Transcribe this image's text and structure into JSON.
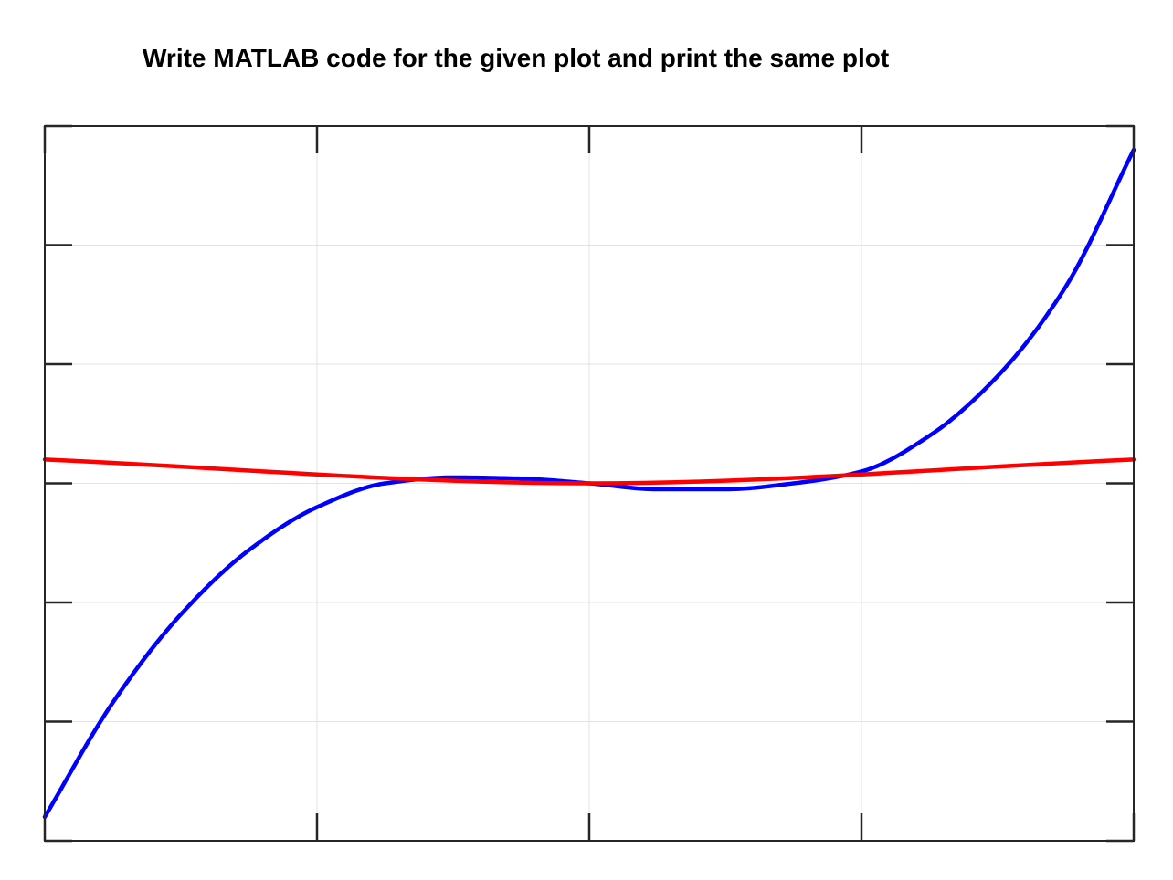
{
  "prompt": {
    "text": "Write MATLAB code for the given plot and print the same plot"
  },
  "chart_data": {
    "type": "line",
    "title": "",
    "xlabel": "",
    "ylabel": "",
    "xlim": [
      -2,
      2
    ],
    "ylim": [
      -3,
      3
    ],
    "xticks": [
      -2,
      -1,
      0,
      1,
      2
    ],
    "yticks": [
      -3,
      -2,
      -1,
      0,
      1,
      2,
      3
    ],
    "grid": true,
    "box": true,
    "tick_labels_visible": false,
    "series": [
      {
        "color": "#0000ff",
        "x": [
          -2,
          -1.75,
          -1.5,
          -1.25,
          -1,
          -0.75,
          -0.5,
          -0.25,
          0,
          0.25,
          0.5,
          0.75,
          1,
          1.25,
          1.5,
          1.75,
          2
        ],
        "y": [
          -2.8,
          -1.84,
          -1.1,
          -0.56,
          -0.2,
          0.0,
          0.05,
          0.04,
          0,
          -0.05,
          -0.05,
          0.0,
          0.1,
          0.4,
          0.9,
          1.65,
          2.8
        ]
      },
      {
        "color": "#ff0000",
        "x": [
          -2,
          0,
          2
        ],
        "y": [
          0.2,
          0,
          0.2
        ]
      }
    ]
  }
}
